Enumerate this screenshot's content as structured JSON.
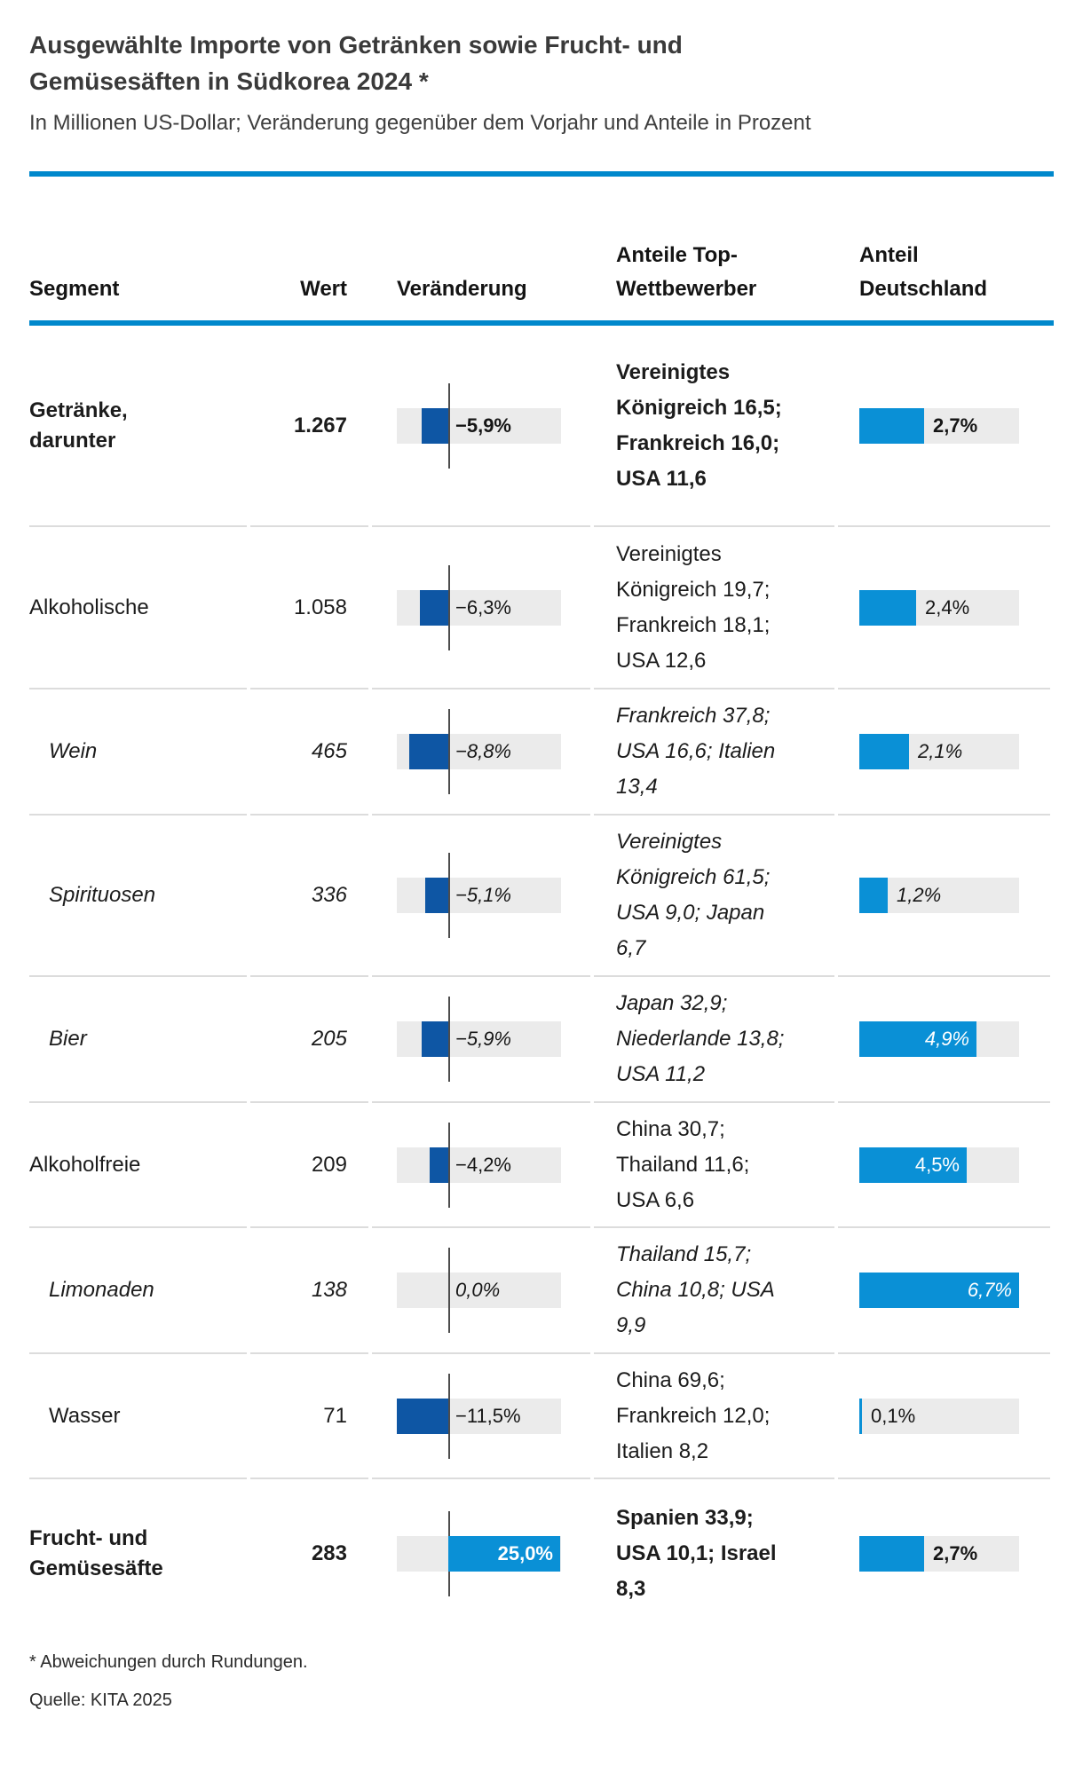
{
  "title": "Ausgewählte Importe von Getränken sowie Frucht- und Gemüsesäften in Südkorea 2024 *",
  "subtitle": "In Millionen US-Dollar; Veränderung gegenüber dem Vorjahr und Anteile in Prozent",
  "table": {
    "headers": {
      "segment": "Segment",
      "wert": "Wert",
      "veraenderung": "Veränderung",
      "wettbewerber": "Anteile Top-\nWettbewerber",
      "deutschland": "Anteil\nDeutschland"
    }
  },
  "chart_data": {
    "type": "table",
    "title": "Ausgewählte Importe von Getränken sowie Frucht- und Gemüsesäften in Südkorea 2024 *",
    "subtitle": "In Millionen US-Dollar; Veränderung gegenüber dem Vorjahr und Anteile in Prozent",
    "columns": [
      "Segment",
      "Wert",
      "Veränderung",
      "Anteile Top-Wettbewerber",
      "Anteil Deutschland"
    ],
    "change_axis_range_pct": [
      -11.5,
      25.0
    ],
    "de_share_axis_range_pct": [
      0,
      6.7
    ],
    "rows": [
      {
        "segment": "Getränke, darunter",
        "emphasis": "bold",
        "indent": false,
        "wert": "1.267",
        "change_pct": -5.9,
        "change_label": "−5,9%",
        "competitors": "Vereinigtes Königreich 16,5; Frankreich 16,0; USA 11,6",
        "de_share_pct": 2.7,
        "de_share_label": "2,7%"
      },
      {
        "segment": "Alkoholische",
        "emphasis": "normal",
        "indent": false,
        "wert": "1.058",
        "change_pct": -6.3,
        "change_label": "−6,3%",
        "competitors": "Vereinigtes Königreich 19,7; Frankreich 18,1; USA 12,6",
        "de_share_pct": 2.4,
        "de_share_label": "2,4%"
      },
      {
        "segment": "Wein",
        "emphasis": "italic",
        "indent": true,
        "wert": "465",
        "change_pct": -8.8,
        "change_label": "−8,8%",
        "competitors": "Frankreich 37,8; USA 16,6; Italien 13,4",
        "de_share_pct": 2.1,
        "de_share_label": "2,1%"
      },
      {
        "segment": "Spirituosen",
        "emphasis": "italic",
        "indent": true,
        "wert": "336",
        "change_pct": -5.1,
        "change_label": "−5,1%",
        "competitors": "Vereinigtes Königreich 61,5; USA 9,0; Japan 6,7",
        "de_share_pct": 1.2,
        "de_share_label": "1,2%"
      },
      {
        "segment": "Bier",
        "emphasis": "italic",
        "indent": true,
        "wert": "205",
        "change_pct": -5.9,
        "change_label": "−5,9%",
        "competitors": "Japan 32,9; Niederlande 13,8; USA 11,2",
        "de_share_pct": 4.9,
        "de_share_label": "4,9%"
      },
      {
        "segment": "Alkoholfreie",
        "emphasis": "normal",
        "indent": false,
        "wert": "209",
        "change_pct": -4.2,
        "change_label": "−4,2%",
        "competitors": "China 30,7; Thailand 11,6; USA 6,6",
        "de_share_pct": 4.5,
        "de_share_label": "4,5%"
      },
      {
        "segment": "Limonaden",
        "emphasis": "italic",
        "indent": true,
        "wert": "138",
        "change_pct": 0.0,
        "change_label": "0,0%",
        "competitors": "Thailand 15,7; China 10,8; USA 9,9",
        "de_share_pct": 6.7,
        "de_share_label": "6,7%"
      },
      {
        "segment": "Wasser",
        "emphasis": "normal",
        "indent": true,
        "wert": "71",
        "change_pct": -11.5,
        "change_label": "−11,5%",
        "competitors": "China 69,6; Frankreich 12,0; Italien 8,2",
        "de_share_pct": 0.1,
        "de_share_label": "0,1%"
      },
      {
        "segment": "Frucht- und Gemüsesäfte",
        "emphasis": "bold",
        "indent": false,
        "wert": "283",
        "change_pct": 25.0,
        "change_label": "25,0%",
        "competitors": "Spanien 33,9; USA 10,1; Israel 8,3",
        "de_share_pct": 2.7,
        "de_share_label": "2,7%"
      }
    ]
  },
  "colors": {
    "accent_rule": "#0088cc",
    "bar_negative_dark_blue": "#0e56a4",
    "bar_positive_light_blue": "#0a90d6",
    "bar_track_gray": "#ebebeb",
    "axis_line": "#4d4d4d"
  },
  "footnote": "* Abweichungen durch Rundungen.",
  "source": "Quelle: KITA 2025"
}
